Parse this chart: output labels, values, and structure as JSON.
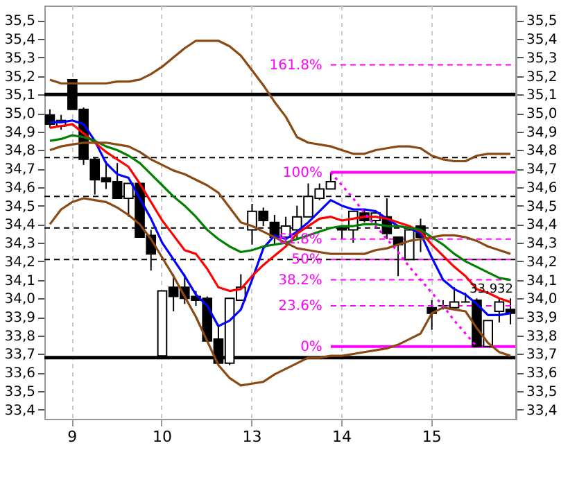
{
  "chart_data": {
    "type": "candlestick",
    "categories": [
      null,
      null,
      "9",
      null,
      null,
      null,
      null,
      null,
      null,
      null,
      "10",
      null,
      null,
      null,
      null,
      null,
      null,
      null,
      "13",
      null,
      null,
      null,
      null,
      null,
      null,
      null,
      "14",
      null,
      null,
      null,
      null,
      null,
      null,
      null,
      "15",
      null,
      null,
      null,
      null,
      null,
      null,
      null
    ],
    "ohlc": [
      [
        34.99,
        35.02,
        34.92,
        34.94
      ],
      [
        34.93,
        34.99,
        34.91,
        34.96
      ],
      [
        35.18,
        35.18,
        35.02,
        35.02
      ],
      [
        35.02,
        35.03,
        34.72,
        34.75
      ],
      [
        34.75,
        34.76,
        34.56,
        34.64
      ],
      [
        34.65,
        34.74,
        34.59,
        34.63
      ],
      [
        34.63,
        34.73,
        34.54,
        34.54
      ],
      [
        34.54,
        34.62,
        34.44,
        34.62
      ],
      [
        34.62,
        34.62,
        34.33,
        34.33
      ],
      [
        34.34,
        34.37,
        34.15,
        34.24
      ],
      [
        33.69,
        34.04,
        33.69,
        34.04
      ],
      [
        34.06,
        34.13,
        33.93,
        34.01
      ],
      [
        34.06,
        34.13,
        33.97,
        34.0
      ],
      [
        34.01,
        34.04,
        33.96,
        33.99
      ],
      [
        34.0,
        34.01,
        33.77,
        33.77
      ],
      [
        33.78,
        33.85,
        33.65,
        33.65
      ],
      [
        33.65,
        34.0,
        33.64,
        34.0
      ],
      [
        33.99,
        34.13,
        33.99,
        34.06
      ],
      [
        34.37,
        34.51,
        34.29,
        34.47
      ],
      [
        34.47,
        34.49,
        34.39,
        34.42
      ],
      [
        34.41,
        34.45,
        34.29,
        34.33
      ],
      [
        34.33,
        34.44,
        34.29,
        34.39
      ],
      [
        34.37,
        34.5,
        34.32,
        34.44
      ],
      [
        34.44,
        34.62,
        34.44,
        34.55
      ],
      [
        34.54,
        34.62,
        34.53,
        34.59
      ],
      [
        34.59,
        34.68,
        34.59,
        34.63
      ],
      [
        34.38,
        34.39,
        34.32,
        34.37
      ],
      [
        34.37,
        34.47,
        34.3,
        34.47
      ],
      [
        34.46,
        34.48,
        34.41,
        34.42
      ],
      [
        34.42,
        34.47,
        34.4,
        34.46
      ],
      [
        34.44,
        34.54,
        34.32,
        34.35
      ],
      [
        34.33,
        34.33,
        34.12,
        34.29
      ],
      [
        34.21,
        34.38,
        34.21,
        34.37
      ],
      [
        34.39,
        34.43,
        34.25,
        34.33
      ],
      [
        33.95,
        33.99,
        33.83,
        33.92
      ],
      [
        33.96,
        33.99,
        33.94,
        33.96
      ],
      [
        33.95,
        34.06,
        33.95,
        33.98
      ],
      [
        33.98,
        34.03,
        33.98,
        33.98
      ],
      [
        33.99,
        34.0,
        33.74,
        33.74
      ],
      [
        33.74,
        33.88,
        33.74,
        33.88
      ],
      [
        33.93,
        34.0,
        33.87,
        33.98
      ],
      [
        33.94,
        34.0,
        33.86,
        33.92
      ]
    ],
    "series": [
      {
        "type": "line",
        "color": "#0000ff",
        "values": [
          34.95,
          34.95,
          34.96,
          34.94,
          34.85,
          34.73,
          34.67,
          34.65,
          34.54,
          34.43,
          34.3,
          34.21,
          34.12,
          34.02,
          33.96,
          33.85,
          33.88,
          33.94,
          34.1,
          34.27,
          34.34,
          34.32,
          34.36,
          34.41,
          34.47,
          34.53,
          34.5,
          34.48,
          34.48,
          34.47,
          34.43,
          34.39,
          34.38,
          34.35,
          34.22,
          34.1,
          34.05,
          34.02,
          33.97,
          33.91,
          33.91,
          33.92
        ]
      },
      {
        "type": "line",
        "color": "#ff0000",
        "values": [
          34.92,
          34.93,
          34.94,
          34.89,
          34.84,
          34.79,
          34.75,
          34.71,
          34.62,
          34.52,
          34.42,
          34.34,
          34.26,
          34.24,
          34.16,
          34.06,
          34.04,
          34.05,
          34.12,
          34.18,
          34.23,
          34.28,
          34.35,
          34.39,
          34.43,
          34.44,
          34.42,
          34.43,
          34.44,
          34.44,
          34.43,
          34.41,
          34.39,
          34.36,
          34.29,
          34.23,
          34.17,
          34.12,
          34.05,
          34.03,
          34.0,
          33.98
        ]
      },
      {
        "type": "line",
        "color": "#008000",
        "values": [
          34.85,
          34.86,
          34.88,
          34.87,
          34.85,
          34.82,
          34.8,
          34.77,
          34.73,
          34.67,
          34.61,
          34.55,
          34.5,
          34.44,
          34.37,
          34.32,
          34.28,
          34.25,
          34.26,
          34.28,
          34.29,
          34.3,
          34.32,
          34.34,
          34.36,
          34.38,
          34.39,
          34.39,
          34.4,
          34.4,
          34.39,
          34.39,
          34.38,
          34.37,
          34.33,
          34.29,
          34.24,
          34.2,
          34.17,
          34.14,
          34.11,
          34.1
        ]
      },
      {
        "type": "line",
        "color": "#8b4a14",
        "values": [
          35.18,
          35.16,
          35.16,
          35.16,
          35.16,
          35.16,
          35.17,
          35.17,
          35.18,
          35.21,
          35.25,
          35.3,
          35.35,
          35.39,
          35.39,
          35.39,
          35.36,
          35.31,
          35.23,
          35.15,
          35.06,
          34.98,
          34.87,
          34.84,
          34.83,
          34.82,
          34.8,
          34.78,
          34.78,
          34.8,
          34.81,
          34.82,
          34.82,
          34.81,
          34.77,
          34.75,
          34.74,
          34.74,
          34.77,
          34.78,
          34.78,
          34.78
        ]
      },
      {
        "type": "line",
        "color": "#8b4a14",
        "values": [
          34.8,
          34.82,
          34.83,
          34.84,
          34.84,
          34.84,
          34.83,
          34.82,
          34.79,
          34.75,
          34.72,
          34.69,
          34.67,
          34.64,
          34.61,
          34.57,
          34.49,
          34.41,
          34.39,
          34.36,
          34.33,
          34.3,
          34.27,
          34.26,
          34.25,
          34.24,
          34.24,
          34.24,
          34.24,
          34.26,
          34.27,
          34.29,
          34.31,
          34.32,
          34.33,
          34.34,
          34.34,
          34.33,
          34.31,
          34.28,
          34.26,
          34.24
        ]
      },
      {
        "type": "line",
        "color": "#8b4a14",
        "values": [
          34.4,
          34.48,
          34.52,
          34.54,
          34.53,
          34.52,
          34.49,
          34.45,
          34.4,
          34.32,
          34.22,
          34.12,
          34.01,
          33.9,
          33.77,
          33.64,
          33.57,
          33.53,
          33.54,
          33.55,
          33.59,
          33.62,
          33.65,
          33.68,
          33.68,
          33.69,
          33.69,
          33.7,
          33.71,
          33.72,
          33.73,
          33.75,
          33.78,
          33.81,
          33.92,
          33.95,
          33.94,
          33.93,
          33.84,
          33.76,
          33.71,
          33.69
        ]
      },
      {
        "type": "line",
        "color": "#ff00ff",
        "line_style": "dotted",
        "values": [
          null,
          null,
          null,
          null,
          null,
          null,
          null,
          null,
          null,
          null,
          null,
          null,
          null,
          null,
          null,
          null,
          null,
          null,
          null,
          null,
          null,
          null,
          null,
          null,
          null,
          34.68,
          34.61,
          34.54,
          34.46,
          34.39,
          34.32,
          34.25,
          34.17,
          34.1,
          34.03,
          33.96,
          33.88,
          33.81,
          33.74,
          null,
          null,
          null
        ]
      }
    ],
    "ref_lines": [
      {
        "axis": "y",
        "value": 35.1,
        "color": "#000000",
        "line_style": "solid"
      },
      {
        "axis": "y",
        "value": 33.68,
        "color": "#000000",
        "line_style": "solid"
      },
      {
        "axis": "y",
        "value": 34.76,
        "color": "#000000",
        "line_style": "dashed"
      },
      {
        "axis": "y",
        "value": 34.55,
        "color": "#000000",
        "line_style": "dashed"
      },
      {
        "axis": "y",
        "value": 34.38,
        "color": "#000000",
        "line_style": "dashed"
      },
      {
        "axis": "y",
        "value": 34.21,
        "color": "#000000",
        "line_style": "dashed"
      },
      {
        "axis": "y",
        "value": 35.26,
        "color": "#ff00ff",
        "line_style": "dashed"
      },
      {
        "axis": "y",
        "value": 34.68,
        "color": "#ff00ff",
        "line_style": "solid"
      },
      {
        "axis": "y",
        "value": 34.32,
        "color": "#ff00ff",
        "line_style": "dashed"
      },
      {
        "axis": "y",
        "value": 34.21,
        "color": "#ff00ff",
        "line_style": "dashed"
      },
      {
        "axis": "y",
        "value": 34.1,
        "color": "#ff00ff",
        "line_style": "dashed"
      },
      {
        "axis": "y",
        "value": 33.96,
        "color": "#ff00ff",
        "line_style": "dashed"
      },
      {
        "axis": "y",
        "value": 33.74,
        "color": "#ff00ff",
        "line_style": "solid"
      }
    ],
    "annotations": [
      "161.8%",
      "100%",
      "61.8%",
      "50%",
      "38.2%",
      "23.6%",
      "0%",
      {
        "text": "33,932",
        "y": 33.932
      }
    ],
    "ylim": [
      33.35,
      35.58
    ],
    "yticks": [
      {
        "value": 33.4,
        "label": "33,4"
      },
      {
        "value": 33.5,
        "label": "33,5"
      },
      {
        "value": 33.6,
        "label": "33,6"
      },
      {
        "value": 33.7,
        "label": "33,7"
      },
      {
        "value": 33.8,
        "label": "33,8"
      },
      {
        "value": 33.9,
        "label": "33,9"
      },
      {
        "value": 34.0,
        "label": "34,0"
      },
      {
        "value": 34.1,
        "label": "34,1"
      },
      {
        "value": 34.2,
        "label": "34,2"
      },
      {
        "value": 34.3,
        "label": "34,3"
      },
      {
        "value": 34.4,
        "label": "34,4"
      },
      {
        "value": 34.5,
        "label": "34,5"
      },
      {
        "value": 34.6,
        "label": "34,6"
      },
      {
        "value": 34.7,
        "label": "34,7"
      },
      {
        "value": 34.8,
        "label": "34,8"
      },
      {
        "value": 34.9,
        "label": "34,9"
      },
      {
        "value": 35.0,
        "label": "35,0"
      },
      {
        "value": 35.1,
        "label": "35,1"
      },
      {
        "value": 35.2,
        "label": "35,2"
      },
      {
        "value": 35.3,
        "label": "35,3"
      },
      {
        "value": 35.4,
        "label": "35,4"
      },
      {
        "value": 35.5,
        "label": "35,5"
      }
    ],
    "y2lim": [
      33.35,
      35.58
    ],
    "y2ticks": [
      {
        "value": 33.4,
        "label": "33,4"
      },
      {
        "value": 33.5,
        "label": "33,5"
      },
      {
        "value": 33.6,
        "label": "33,6"
      },
      {
        "value": 33.7,
        "label": "33,7"
      },
      {
        "value": 33.8,
        "label": "33,8"
      },
      {
        "value": 33.9,
        "label": "33,9"
      },
      {
        "value": 34.0,
        "label": "34,0"
      },
      {
        "value": 34.1,
        "label": "34,1"
      },
      {
        "value": 34.2,
        "label": "34,2"
      },
      {
        "value": 34.3,
        "label": "34,3"
      },
      {
        "value": 34.4,
        "label": "34,4"
      },
      {
        "value": 34.5,
        "label": "34,5"
      },
      {
        "value": 34.6,
        "label": "34,6"
      },
      {
        "value": 34.7,
        "label": "34,7"
      },
      {
        "value": 34.8,
        "label": "34,8"
      },
      {
        "value": 34.9,
        "label": "34,9"
      },
      {
        "value": 35.0,
        "label": "35,0"
      },
      {
        "value": 35.1,
        "label": "35,1"
      },
      {
        "value": 35.2,
        "label": "35,2"
      },
      {
        "value": 35.3,
        "label": "35,3"
      },
      {
        "value": 35.4,
        "label": "35,4"
      },
      {
        "value": 35.5,
        "label": "35,5"
      }
    ],
    "grid": "x"
  }
}
